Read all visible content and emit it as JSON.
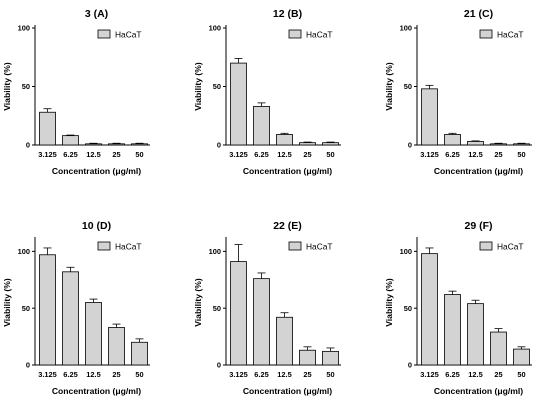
{
  "legend_label": "HaCaT",
  "bar_color": "#d3d3d3",
  "chart_data": [
    {
      "type": "bar",
      "title": "3 (A)",
      "xlabel": "Concentration (μg/ml)",
      "ylabel": "Viability (%)",
      "categories": [
        "3.125",
        "6.25",
        "12.5",
        "25",
        "50"
      ],
      "ylim": [
        0,
        100
      ],
      "yticks": [
        0,
        50,
        100
      ],
      "series": [
        {
          "name": "HaCaT",
          "values": [
            28,
            8,
            1,
            1,
            1
          ],
          "errors": [
            3,
            0.5,
            0.5,
            0.5,
            0.5
          ]
        }
      ],
      "legend": "top-right",
      "grid": false
    },
    {
      "type": "bar",
      "title": "12 (B)",
      "xlabel": "Concentration (μg/ml)",
      "ylabel": "Viability (%)",
      "categories": [
        "3.125",
        "6.25",
        "12.5",
        "25",
        "50"
      ],
      "ylim": [
        0,
        100
      ],
      "yticks": [
        0,
        50,
        100
      ],
      "series": [
        {
          "name": "HaCaT",
          "values": [
            70,
            33,
            9,
            2,
            2
          ],
          "errors": [
            4,
            3,
            1,
            0.5,
            0.5
          ]
        }
      ],
      "legend": "top-right",
      "grid": false
    },
    {
      "type": "bar",
      "title": "21 (C)",
      "xlabel": "Concentration (μg/ml)",
      "ylabel": "Viability (%)",
      "categories": [
        "3.125",
        "6.25",
        "12.5",
        "25",
        "50"
      ],
      "ylim": [
        0,
        100
      ],
      "yticks": [
        0,
        50,
        100
      ],
      "series": [
        {
          "name": "HaCaT",
          "values": [
            48,
            9,
            3,
            1,
            1
          ],
          "errors": [
            3,
            1,
            0.5,
            0.5,
            0.5
          ]
        }
      ],
      "legend": "top-right",
      "grid": false
    },
    {
      "type": "bar",
      "title": "10 (D)",
      "xlabel": "Concentration (μg/ml)",
      "ylabel": "Viability (%)",
      "categories": [
        "3.125",
        "6.25",
        "12.5",
        "25",
        "50"
      ],
      "ylim": [
        0,
        110
      ],
      "yticks": [
        0,
        50,
        100
      ],
      "series": [
        {
          "name": "HaCaT",
          "values": [
            97,
            82,
            55,
            33,
            20
          ],
          "errors": [
            6,
            4,
            3,
            3,
            3
          ]
        }
      ],
      "legend": "top-right",
      "grid": false
    },
    {
      "type": "bar",
      "title": "22 (E)",
      "xlabel": "Concentration (μg/ml)",
      "ylabel": "Viability (%)",
      "categories": [
        "3.125",
        "6.25",
        "12.5",
        "25",
        "50"
      ],
      "ylim": [
        0,
        110
      ],
      "yticks": [
        0,
        50,
        100
      ],
      "series": [
        {
          "name": "HaCaT",
          "values": [
            91,
            76,
            42,
            13,
            12
          ],
          "errors": [
            15,
            5,
            4,
            3,
            3
          ]
        }
      ],
      "legend": "top-right",
      "grid": false
    },
    {
      "type": "bar",
      "title": "29 (F)",
      "xlabel": "Concentration (μg/ml)",
      "ylabel": "Viability (%)",
      "categories": [
        "3.125",
        "6.25",
        "12.5",
        "25",
        "50"
      ],
      "ylim": [
        0,
        110
      ],
      "yticks": [
        0,
        50,
        100
      ],
      "series": [
        {
          "name": "HaCaT",
          "values": [
            98,
            62,
            54,
            29,
            14
          ],
          "errors": [
            5,
            3,
            3,
            3,
            2
          ]
        }
      ],
      "legend": "top-right",
      "grid": false
    }
  ]
}
